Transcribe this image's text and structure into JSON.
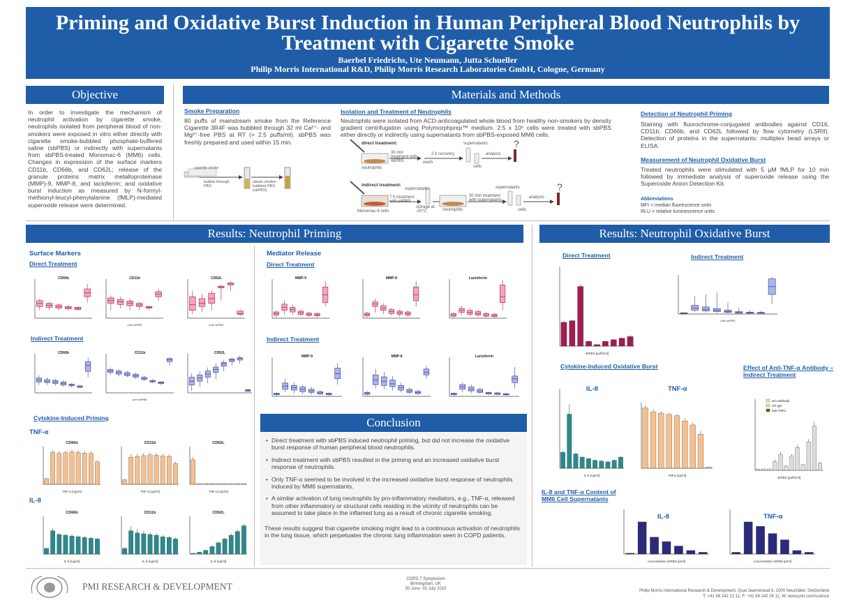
{
  "header": {
    "title": "Priming and Oxidative Burst Induction in Human Peripheral Blood Neutrophils by Treatment with Cigarette Smoke",
    "authors": "Baerbel Friedrichs, Ute Neumann, Jutta Schueller",
    "affiliation": "Philip Morris International R&D, Philip Morris Research Laboratories GmbH, Cologne, Germany"
  },
  "objective": {
    "heading": "Objective",
    "text": "In order to investigate the mechanism of neutrophil activation by cigarette smoke, neutrophils isolated from peripheral blood of non-smokers were exposed in vitro either directly with cigarette smoke-bubbled phosphate-buffered saline (sbPBS) or indirectly with supernatants from sbPBS-treated Monomac-6 (MM6) cells. Changes in expression of the surface markers CD11b, CD66b, and CD62L; release of the granule proteins matrix metalloproteinase (MMP)-9, MMP-8, and lactoferrin; and oxidative burst induction as measured by N-formyl-methionyl-leucyl-phenylalanine (fMLP)-mediated superoxide release were determined."
  },
  "methods": {
    "heading": "Materials and Methods",
    "smoke_title": "Smoke Preparation",
    "smoke_text": "80 puffs of mainstream smoke from the Reference Cigarette 3R4F was bubbled through 32 ml Ca²⁺- and Mg²⁺-free PBS at RT (= 2.5 puffs/ml). sbPBS was freshly prepared and used within 15 min.",
    "smoke_diagram": {
      "a": "cigarette smoke",
      "b": "bubble through PBS",
      "c": "obtain smoke-bubbled PBS (sbPBS)"
    },
    "isolation_title": "Isolation and Treatment of Neutrophils",
    "isolation_text": "Neutrophils were isolated from ACD-anticoagulated whole blood from healthy non-smokers by density gradient centrifugation using Polymorphprep™ medium. 2.5 x 10⁶ cells were treated with sbPBS either directly or indirectly using supernatants from sbPBS-exposed MM6 cells.",
    "direct_label": "direct treatment:",
    "indirect_label": "indirect treatment:",
    "diagram": {
      "neutrophils": "neutrophils",
      "t30": "30 min treatment with sbPBS",
      "wash": "wash",
      "recovery": "2 h recovery",
      "supernatants": "supernatants",
      "cells": "cells",
      "analysis": "analysis",
      "mm6": "Monomac-6 cells",
      "t7": "7 h treatment with sbPBS",
      "storage": "storage at -20°C",
      "t30b": "30 min treatment with supernatants",
      "q": "?"
    },
    "detection_title": "Detection of Neutrophil Priming",
    "detection_text": "Staining with fluorochrome-conjugated antibodies against CD16, CD11b, CD66b, and CD62L followed by flow cytometry (LSRII). Detection of proteins in the supernatants: multiplex bead arrays or ELISA.",
    "burst_title": "Measurement of Neutrophil Oxidative Burst",
    "burst_text": "Treated neutrophils were stimulated with 5 µM fMLP for 10 min followed by immediate analysis of superoxide release using the Superoxide Anion Detection Kit.",
    "abbr_title": "Abbreviations",
    "abbr1": "MFI = median fluorescence units",
    "abbr2": "RLU = relative luminescence units"
  },
  "priming": {
    "heading": "Results:  Neutrophil Priming",
    "surface": "Surface Markers",
    "mediator": "Mediator Release",
    "direct": "Direct Treatment",
    "indirect": "Indirect Treatment",
    "cytokine": "Cytokine-Induced Priming",
    "tnf": "TNF-α",
    "il8": "IL-8",
    "labels": {
      "cd66b": "CD66b",
      "cd11b": "CD11b",
      "cd62l": "CD62L",
      "mmp9": "MMP-9",
      "mmp8": "MMP-8",
      "lacto": "Lactoferrin",
      "psbpbs": "p/ml sbPBS",
      "tnfng": "TNF-α [ng/ml]",
      "il8ng": "IL-8 [ng/ml]"
    }
  },
  "burst": {
    "heading": "Results:  Neutrophil Oxidative Burst",
    "direct": "Direct Treatment",
    "indirect": "Indirect Treatment",
    "cytokine": "Cytokine-Induced Oxidative Burst",
    "antitnf": "Effect of Anti-TNF-α Antibody – Indirect Treatment",
    "mm6content": "IL-8 and TNF-α Content of MM6 Cell Supernatants",
    "il8": "IL-8",
    "tnf": "TNF-α",
    "legend": [
      "w/o antibody",
      "ctrl IgG",
      "anti-TNFα"
    ],
    "xlab_sbpbs": "sbPBS [puffs/ml]",
    "xlab_psbpbs": "p/ml sbPBS",
    "xlab_il8": "IL-8 [ng/ml]",
    "xlab_tnf": "TNFα [ng/ml]",
    "xlab_conc": "concentration sbPBS [p/ml]",
    "ylab_rlu": "RLU",
    "ylab_rel": "Relative Luminescence [% of ctrl]"
  },
  "conclusion": {
    "heading": "Conclusion",
    "items": [
      "Direct treatment with sbPBS induced neutrophil priming, but did not increase the oxidative burst response of human peripheral blood neutrophils.",
      "Indirect treatment with sbPBS resulted in the priming and an increased oxidative burst response of neutrophils.",
      "Only TNF-α seemed to be involved in the increased oxidative burst response of neutrophils induced by MM6 supernatants.",
      "A similar activation of lung neutrophils by pro-inflammatory mediators, e.g., TNF-α, released from other inflammatory or structural cells residing in the vicinity of neutrophils can be assumed to take place in the inflamed lung as a result of chronic cigarette smoking."
    ],
    "summary": "These results suggest that cigarette smoking might lead to a continuous activation of neutrophils in the lung tissue, which perpetuates the chronic lung inflammation seen in COPD patients."
  },
  "footer": {
    "logo_text": "PMI RESEARCH & DEVELOPMENT",
    "event1": "COPD 7 Symposium",
    "event2": "Birmingham, UK",
    "event3": "30 June -02 July 2010",
    "address": "Philip Morris International Research & Development, Quai Jeanrenaud 5, 2000 Neuchâtel, Switzerland",
    "contact": "T: +41 58 242 21 11, F: +41 58 242 28 11, W: www.pmi.com/science"
  },
  "colors": {
    "blue": "#1f5da8",
    "maroon": "#a01c52",
    "pink": "#f4a6b8",
    "lavender": "#aab4ee",
    "navy": "#2b2b7a",
    "teal": "#2a8a8e",
    "peach": "#f6c08e"
  }
}
